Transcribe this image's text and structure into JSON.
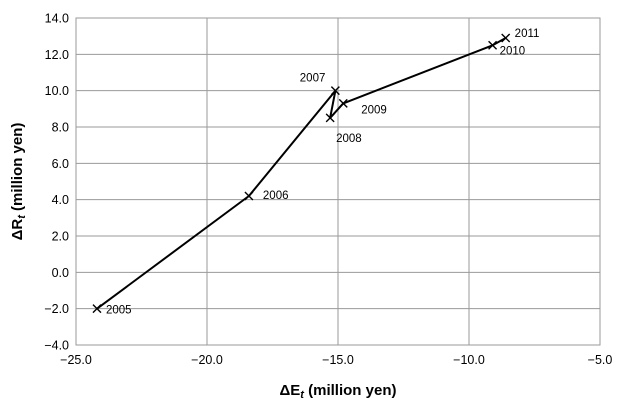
{
  "chart_data": {
    "type": "line",
    "xlabel": {
      "main": "ΔE",
      "sub": "t",
      "unit": " (million yen)"
    },
    "ylabel": {
      "main": "ΔR",
      "sub": "t",
      "unit": " (million yen)"
    },
    "xlim": [
      -25.0,
      -5.0
    ],
    "ylim": [
      -4.0,
      14.0
    ],
    "xticks": [
      -25.0,
      -20.0,
      -15.0,
      -10.0,
      -5.0
    ],
    "xtick_labels": [
      "−25.0",
      "−20.0",
      "−15.0",
      "−10.0",
      "−5.0"
    ],
    "yticks": [
      -4.0,
      -2.0,
      0.0,
      2.0,
      4.0,
      6.0,
      8.0,
      10.0,
      12.0,
      14.0
    ],
    "ytick_labels": [
      "−4.0",
      "−2.0",
      "0.0",
      "2.0",
      "4.0",
      "6.0",
      "8.0",
      "10.0",
      "12.0",
      "14.0"
    ],
    "grid": true,
    "marker": "x",
    "series": [
      {
        "points": [
          {
            "label": "2005",
            "x": -24.2,
            "y": -2.0
          },
          {
            "label": "2006",
            "x": -18.4,
            "y": 4.2
          },
          {
            "label": "2007",
            "x": -15.1,
            "y": 10.0
          },
          {
            "label": "2008",
            "x": -15.3,
            "y": 8.5
          },
          {
            "label": "2009",
            "x": -14.8,
            "y": 9.3
          },
          {
            "label": "2010",
            "x": -9.1,
            "y": 12.5
          },
          {
            "label": "2011",
            "x": -8.6,
            "y": 12.9
          }
        ]
      }
    ]
  }
}
